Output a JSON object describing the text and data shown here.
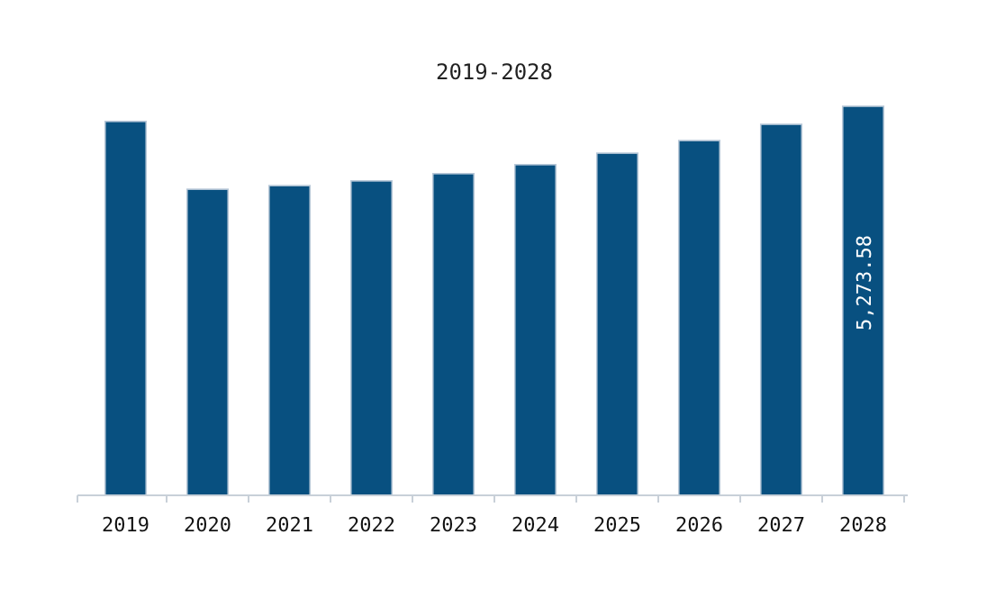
{
  "chart_data": {
    "type": "bar",
    "title": "2019-2028",
    "categories": [
      "2019",
      "2020",
      "2021",
      "2022",
      "2023",
      "2024",
      "2025",
      "2026",
      "2027",
      "2028"
    ],
    "values": [
      5068,
      4149,
      4198,
      4262,
      4360,
      4482,
      4638,
      4809,
      5029,
      5273.58
    ],
    "value_labels": [
      null,
      null,
      null,
      null,
      null,
      null,
      null,
      null,
      null,
      "5,273.58"
    ],
    "color": "#085080"
  }
}
